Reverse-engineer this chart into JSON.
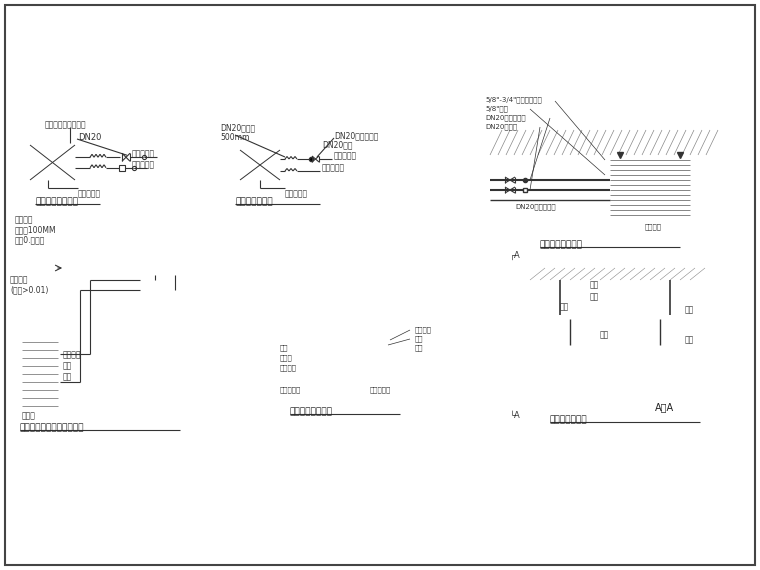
{
  "bg_color": "#ffffff",
  "line_color": "#333333",
  "diagram_titles": [
    "吊顶式风柜接管图",
    "风机盘管配管图",
    "风机盘管安装详图",
    "一拖一空调机组运行系统图",
    "保温风管安装详图",
    "吊装风管安装图"
  ],
  "labels_top_left": [
    "比例微分电动二通阀",
    "DN20",
    "冷冻回水管",
    "冷冻供水管",
    "冷凝排水管"
  ],
  "labels_top_mid": [
    "DN20柔接管",
    "500mm",
    "DN20电磁二通阀",
    "DN20蝶阀",
    "冷冻回水管",
    "冷冻供水管",
    "冷凝排水管"
  ],
  "labels_top_right": [
    "5/8\"-3/4\"钢束，钢拴固",
    "5/8\"铜管",
    "DN20电动二通阀",
    "DN20蝶阀阀",
    "膨胀螺丝",
    "DN20冷凝排水管"
  ],
  "labels_bot_left": [
    "保温管道",
    "半径到100MM",
    "坡度0.未放置",
    "汽管",
    "液管",
    "室外机",
    "膨胀螺丝"
  ],
  "labels_bot_mid": [
    "膨胀螺丝",
    "管件",
    "管节",
    "风管",
    "保温层",
    "玻璃钢板",
    "管节及丝圈",
    "管节及丝置"
  ],
  "labels_bot_right": [
    "螺丝",
    "角铁",
    "吊杆",
    "风管",
    "槽钢",
    "钢板"
  ]
}
